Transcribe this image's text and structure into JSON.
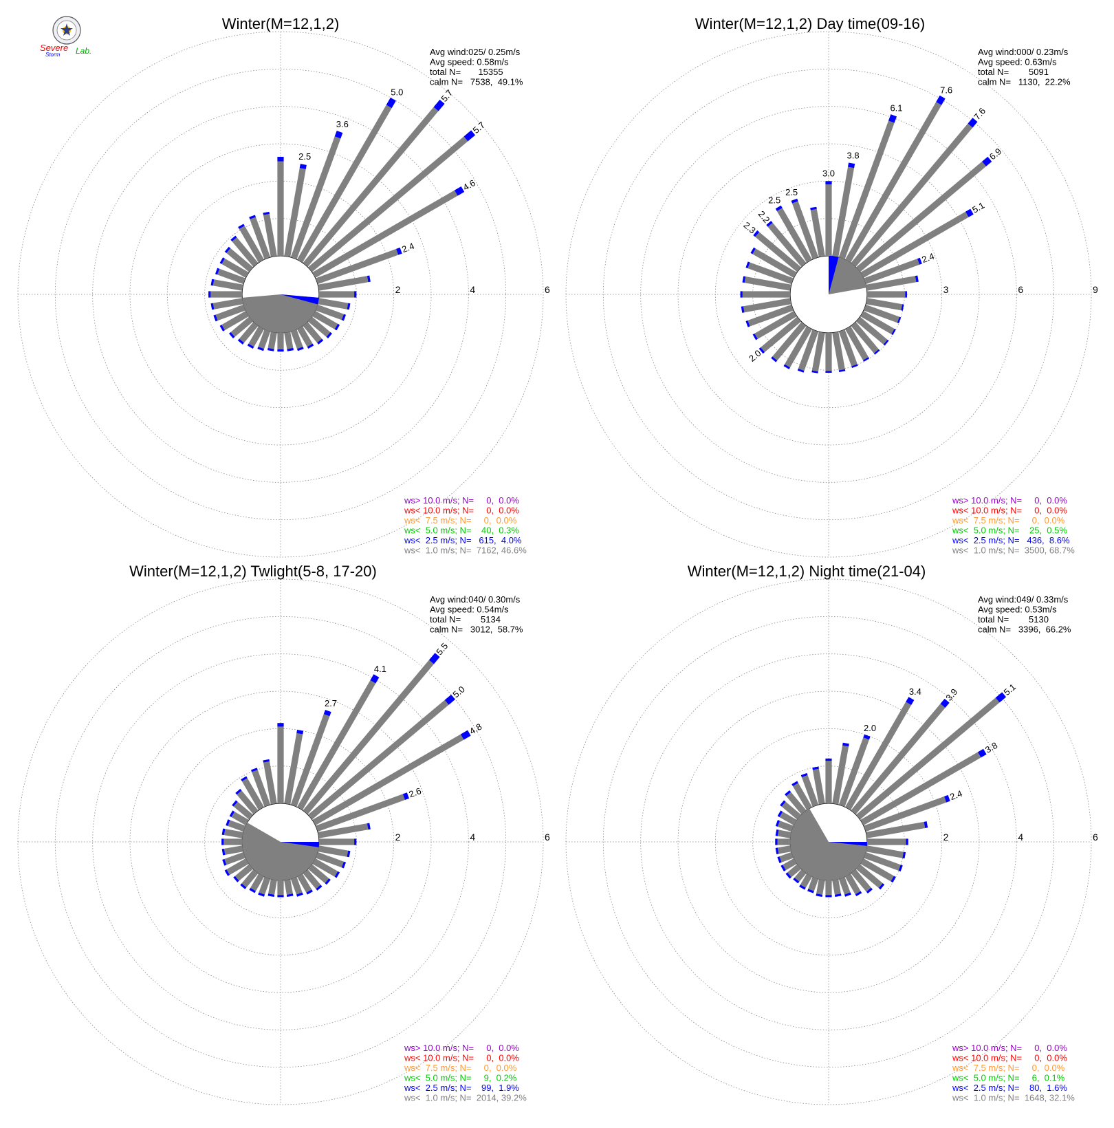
{
  "colors": {
    "gray": "#808080",
    "blue": "#0000ff",
    "green": "#00cc00",
    "orange": "#ff9933",
    "red": "#ff0000",
    "purple": "#9900cc",
    "grid": "#888888"
  },
  "logo": {
    "icon": "severe-storm-lab-logo",
    "text_severe": "Severe",
    "text_storm": "Storm",
    "text_lab": "Lab."
  },
  "chart_data": [
    {
      "type": "wind-rose",
      "title": "Winter(M=12,1,2)",
      "ring_max": 6,
      "ring_labels": [
        "2",
        "4",
        "6"
      ],
      "stats": [
        "Avg wind:025/ 0.25m/s",
        "Avg speed: 0.58m/s",
        "total N=       15355",
        "calm N=   7538,  49.1%"
      ],
      "calm_pie_percent": 49.1,
      "calm_start_deg": 95,
      "calm_end_deg": 265,
      "calm_blue_deg": 10,
      "directions": [
        {
          "dir": 0,
          "value": 2.65,
          "label": ""
        },
        {
          "dir": 10,
          "value": 2.5,
          "label": "2.5"
        },
        {
          "dir": 20,
          "value": 3.6,
          "label": "3.6"
        },
        {
          "dir": 30,
          "value": 5.0,
          "label": "5.0"
        },
        {
          "dir": 40,
          "value": 5.7,
          "label": "5.7"
        },
        {
          "dir": 50,
          "value": 5.7,
          "label": "5.7"
        },
        {
          "dir": 60,
          "value": 4.6,
          "label": "4.6"
        },
        {
          "dir": 70,
          "value": 2.4,
          "label": "2.4"
        },
        {
          "dir": 80,
          "value": 1.4,
          "label": ""
        },
        {
          "dir": 90,
          "value": 1.0,
          "label": ""
        },
        {
          "dir": 100,
          "value": 0.85,
          "label": ""
        },
        {
          "dir": 110,
          "value": 0.8,
          "label": ""
        },
        {
          "dir": 120,
          "value": 0.75,
          "label": ""
        },
        {
          "dir": 130,
          "value": 0.7,
          "label": ""
        },
        {
          "dir": 140,
          "value": 0.65,
          "label": ""
        },
        {
          "dir": 150,
          "value": 0.6,
          "label": ""
        },
        {
          "dir": 160,
          "value": 0.55,
          "label": ""
        },
        {
          "dir": 170,
          "value": 0.5,
          "label": ""
        },
        {
          "dir": 180,
          "value": 0.5,
          "label": ""
        },
        {
          "dir": 190,
          "value": 0.5,
          "label": ""
        },
        {
          "dir": 200,
          "value": 0.55,
          "label": ""
        },
        {
          "dir": 210,
          "value": 0.6,
          "label": ""
        },
        {
          "dir": 220,
          "value": 0.65,
          "label": ""
        },
        {
          "dir": 230,
          "value": 0.7,
          "label": ""
        },
        {
          "dir": 240,
          "value": 0.8,
          "label": ""
        },
        {
          "dir": 250,
          "value": 0.85,
          "label": ""
        },
        {
          "dir": 260,
          "value": 0.85,
          "label": ""
        },
        {
          "dir": 270,
          "value": 0.9,
          "label": ""
        },
        {
          "dir": 280,
          "value": 0.85,
          "label": ""
        },
        {
          "dir": 290,
          "value": 0.8,
          "label": ""
        },
        {
          "dir": 300,
          "value": 0.8,
          "label": ""
        },
        {
          "dir": 310,
          "value": 0.85,
          "label": ""
        },
        {
          "dir": 320,
          "value": 0.95,
          "label": ""
        },
        {
          "dir": 330,
          "value": 1.1,
          "label": ""
        },
        {
          "dir": 340,
          "value": 1.2,
          "label": ""
        },
        {
          "dir": 350,
          "value": 1.2,
          "label": ""
        }
      ],
      "legend": [
        {
          "text": "ws> 10.0 m/s; N=     0,  0.0%",
          "color": "#9900cc"
        },
        {
          "text": "ws< 10.0 m/s; N=     0,  0.0%",
          "color": "#ff0000"
        },
        {
          "text": "ws<  7.5 m/s; N=     0,  0.0%",
          "color": "#ff9933"
        },
        {
          "text": "ws<  5.0 m/s; N=    40,  0.3%",
          "color": "#00cc00"
        },
        {
          "text": "ws<  2.5 m/s; N=   615,  4.0%",
          "color": "#0000ff"
        },
        {
          "text": "ws<  1.0 m/s; N=  7162, 46.6%",
          "color": "#808080"
        }
      ]
    },
    {
      "type": "wind-rose",
      "title": "Winter(M=12,1,2) Day time(09-16)",
      "ring_max": 9,
      "ring_labels": [
        "3",
        "6",
        "9"
      ],
      "stats": [
        "Avg wind:000/ 0.23m/s",
        "Avg speed: 0.63m/s",
        "total N=        5091",
        "calm N=   1130,  22.2%"
      ],
      "calm_pie_percent": 22.2,
      "calm_start_deg": 0,
      "calm_end_deg": 80,
      "calm_blue_deg": 15,
      "directions": [
        {
          "dir": 0,
          "value": 3.0,
          "label": "3.0"
        },
        {
          "dir": 10,
          "value": 3.8,
          "label": "3.8"
        },
        {
          "dir": 20,
          "value": 6.1,
          "label": "6.1"
        },
        {
          "dir": 30,
          "value": 7.6,
          "label": "7.6"
        },
        {
          "dir": 40,
          "value": 7.6,
          "label": "7.6"
        },
        {
          "dir": 50,
          "value": 6.9,
          "label": "6.9"
        },
        {
          "dir": 60,
          "value": 5.1,
          "label": "5.1"
        },
        {
          "dir": 70,
          "value": 2.4,
          "label": "2.4"
        },
        {
          "dir": 80,
          "value": 2.1,
          "label": ""
        },
        {
          "dir": 90,
          "value": 1.6,
          "label": ""
        },
        {
          "dir": 100,
          "value": 1.5,
          "label": ""
        },
        {
          "dir": 110,
          "value": 1.5,
          "label": ""
        },
        {
          "dir": 120,
          "value": 1.5,
          "label": ""
        },
        {
          "dir": 130,
          "value": 1.5,
          "label": ""
        },
        {
          "dir": 140,
          "value": 1.5,
          "label": ""
        },
        {
          "dir": 150,
          "value": 1.5,
          "label": ""
        },
        {
          "dir": 160,
          "value": 1.55,
          "label": ""
        },
        {
          "dir": 170,
          "value": 1.6,
          "label": ""
        },
        {
          "dir": 180,
          "value": 1.6,
          "label": ""
        },
        {
          "dir": 190,
          "value": 1.65,
          "label": ""
        },
        {
          "dir": 200,
          "value": 1.75,
          "label": ""
        },
        {
          "dir": 210,
          "value": 1.85,
          "label": ""
        },
        {
          "dir": 220,
          "value": 1.9,
          "label": ""
        },
        {
          "dir": 230,
          "value": 2.0,
          "label": "2.0"
        },
        {
          "dir": 240,
          "value": 1.9,
          "label": ""
        },
        {
          "dir": 250,
          "value": 1.95,
          "label": ""
        },
        {
          "dir": 260,
          "value": 2.0,
          "label": ""
        },
        {
          "dir": 270,
          "value": 2.0,
          "label": ""
        },
        {
          "dir": 280,
          "value": 1.95,
          "label": ""
        },
        {
          "dir": 290,
          "value": 1.95,
          "label": ""
        },
        {
          "dir": 300,
          "value": 2.0,
          "label": ""
        },
        {
          "dir": 310,
          "value": 2.3,
          "label": "2.3"
        },
        {
          "dir": 320,
          "value": 2.2,
          "label": "2.2"
        },
        {
          "dir": 330,
          "value": 2.5,
          "label": "2.5"
        },
        {
          "dir": 340,
          "value": 2.5,
          "label": "2.5"
        },
        {
          "dir": 350,
          "value": 2.0,
          "label": ""
        }
      ],
      "legend": [
        {
          "text": "ws> 10.0 m/s; N=     0,  0.0%",
          "color": "#9900cc"
        },
        {
          "text": "ws< 10.0 m/s; N=     0,  0.0%",
          "color": "#ff0000"
        },
        {
          "text": "ws<  7.5 m/s; N=     0,  0.0%",
          "color": "#ff9933"
        },
        {
          "text": "ws<  5.0 m/s; N=    25,  0.5%",
          "color": "#00cc00"
        },
        {
          "text": "ws<  2.5 m/s; N=   436,  8.6%",
          "color": "#0000ff"
        },
        {
          "text": "ws<  1.0 m/s; N=  3500, 68.7%",
          "color": "#808080"
        }
      ]
    },
    {
      "type": "wind-rose",
      "title": "Winter(M=12,1,2) Twlight(5-8, 17-20)",
      "ring_max": 6,
      "ring_labels": [
        "2",
        "4",
        "6"
      ],
      "stats": [
        "Avg wind:040/ 0.30m/s",
        "Avg speed: 0.54m/s",
        "total N=        5134",
        "calm N=   3012,  58.7%"
      ],
      "calm_pie_percent": 58.7,
      "calm_start_deg": 90,
      "calm_end_deg": 300,
      "calm_blue_deg": 8,
      "directions": [
        {
          "dir": 0,
          "value": 2.15,
          "label": ""
        },
        {
          "dir": 10,
          "value": 2.0,
          "label": ""
        },
        {
          "dir": 20,
          "value": 2.7,
          "label": "2.7"
        },
        {
          "dir": 30,
          "value": 4.1,
          "label": "4.1"
        },
        {
          "dir": 40,
          "value": 5.5,
          "label": "5.5"
        },
        {
          "dir": 50,
          "value": 5.0,
          "label": "5.0"
        },
        {
          "dir": 60,
          "value": 4.8,
          "label": "4.8"
        },
        {
          "dir": 70,
          "value": 2.6,
          "label": "2.6"
        },
        {
          "dir": 80,
          "value": 1.4,
          "label": ""
        },
        {
          "dir": 90,
          "value": 1.0,
          "label": ""
        },
        {
          "dir": 100,
          "value": 0.85,
          "label": ""
        },
        {
          "dir": 110,
          "value": 0.8,
          "label": ""
        },
        {
          "dir": 120,
          "value": 0.75,
          "label": ""
        },
        {
          "dir": 130,
          "value": 0.65,
          "label": ""
        },
        {
          "dir": 140,
          "value": 0.6,
          "label": ""
        },
        {
          "dir": 150,
          "value": 0.55,
          "label": ""
        },
        {
          "dir": 160,
          "value": 0.5,
          "label": ""
        },
        {
          "dir": 170,
          "value": 0.45,
          "label": ""
        },
        {
          "dir": 180,
          "value": 0.45,
          "label": ""
        },
        {
          "dir": 190,
          "value": 0.45,
          "label": ""
        },
        {
          "dir": 200,
          "value": 0.5,
          "label": ""
        },
        {
          "dir": 210,
          "value": 0.5,
          "label": ""
        },
        {
          "dir": 220,
          "value": 0.55,
          "label": ""
        },
        {
          "dir": 230,
          "value": 0.55,
          "label": ""
        },
        {
          "dir": 240,
          "value": 0.65,
          "label": ""
        },
        {
          "dir": 250,
          "value": 0.6,
          "label": ""
        },
        {
          "dir": 260,
          "value": 0.55,
          "label": ""
        },
        {
          "dir": 270,
          "value": 0.55,
          "label": ""
        },
        {
          "dir": 280,
          "value": 0.55,
          "label": ""
        },
        {
          "dir": 290,
          "value": 0.5,
          "label": ""
        },
        {
          "dir": 300,
          "value": 0.5,
          "label": ""
        },
        {
          "dir": 310,
          "value": 0.6,
          "label": ""
        },
        {
          "dir": 320,
          "value": 0.75,
          "label": ""
        },
        {
          "dir": 330,
          "value": 0.95,
          "label": ""
        },
        {
          "dir": 340,
          "value": 1.05,
          "label": ""
        },
        {
          "dir": 350,
          "value": 1.2,
          "label": ""
        }
      ],
      "legend": [
        {
          "text": "ws> 10.0 m/s; N=     0,  0.0%",
          "color": "#9900cc"
        },
        {
          "text": "ws< 10.0 m/s; N=     0,  0.0%",
          "color": "#ff0000"
        },
        {
          "text": "ws<  7.5 m/s; N=     0,  0.0%",
          "color": "#ff9933"
        },
        {
          "text": "ws<  5.0 m/s; N=     9,  0.2%",
          "color": "#00cc00"
        },
        {
          "text": "ws<  2.5 m/s; N=    99,  1.9%",
          "color": "#0000ff"
        },
        {
          "text": "ws<  1.0 m/s; N=  2014, 39.2%",
          "color": "#808080"
        }
      ]
    },
    {
      "type": "wind-rose",
      "title": "Winter(M=12,1,2) Night time(21-04)",
      "ring_max": 6,
      "ring_labels": [
        "2",
        "4",
        "6"
      ],
      "stats": [
        "Avg wind:049/ 0.33m/s",
        "Avg speed: 0.53m/s",
        "total N=        5130",
        "calm N=   3396,  66.2%"
      ],
      "calm_pie_percent": 66.2,
      "calm_start_deg": 90,
      "calm_end_deg": 330,
      "calm_blue_deg": 6,
      "directions": [
        {
          "dir": 0,
          "value": 1.2,
          "label": ""
        },
        {
          "dir": 10,
          "value": 1.65,
          "label": ""
        },
        {
          "dir": 20,
          "value": 2.0,
          "label": "2.0"
        },
        {
          "dir": 30,
          "value": 3.4,
          "label": "3.4"
        },
        {
          "dir": 40,
          "value": 3.9,
          "label": "3.9"
        },
        {
          "dir": 50,
          "value": 5.1,
          "label": "5.1"
        },
        {
          "dir": 60,
          "value": 3.8,
          "label": "3.8"
        },
        {
          "dir": 70,
          "value": 2.4,
          "label": "2.4"
        },
        {
          "dir": 80,
          "value": 1.65,
          "label": ""
        },
        {
          "dir": 90,
          "value": 1.1,
          "label": ""
        },
        {
          "dir": 100,
          "value": 1.05,
          "label": ""
        },
        {
          "dir": 110,
          "value": 1.05,
          "label": ""
        },
        {
          "dir": 120,
          "value": 1.0,
          "label": ""
        },
        {
          "dir": 130,
          "value": 0.85,
          "label": ""
        },
        {
          "dir": 140,
          "value": 0.7,
          "label": ""
        },
        {
          "dir": 150,
          "value": 0.6,
          "label": ""
        },
        {
          "dir": 160,
          "value": 0.5,
          "label": ""
        },
        {
          "dir": 170,
          "value": 0.45,
          "label": ""
        },
        {
          "dir": 180,
          "value": 0.45,
          "label": ""
        },
        {
          "dir": 190,
          "value": 0.45,
          "label": ""
        },
        {
          "dir": 200,
          "value": 0.4,
          "label": ""
        },
        {
          "dir": 210,
          "value": 0.4,
          "label": ""
        },
        {
          "dir": 220,
          "value": 0.35,
          "label": ""
        },
        {
          "dir": 230,
          "value": 0.4,
          "label": ""
        },
        {
          "dir": 240,
          "value": 0.4,
          "label": ""
        },
        {
          "dir": 250,
          "value": 0.4,
          "label": ""
        },
        {
          "dir": 260,
          "value": 0.4,
          "label": ""
        },
        {
          "dir": 270,
          "value": 0.4,
          "label": ""
        },
        {
          "dir": 280,
          "value": 0.4,
          "label": ""
        },
        {
          "dir": 290,
          "value": 0.45,
          "label": ""
        },
        {
          "dir": 300,
          "value": 0.5,
          "label": ""
        },
        {
          "dir": 310,
          "value": 0.6,
          "label": ""
        },
        {
          "dir": 320,
          "value": 0.7,
          "label": ""
        },
        {
          "dir": 330,
          "value": 0.8,
          "label": ""
        },
        {
          "dir": 340,
          "value": 0.9,
          "label": ""
        },
        {
          "dir": 350,
          "value": 1.0,
          "label": ""
        }
      ],
      "legend": [
        {
          "text": "ws> 10.0 m/s; N=     0,  0.0%",
          "color": "#9900cc"
        },
        {
          "text": "ws< 10.0 m/s; N=     0,  0.0%",
          "color": "#ff0000"
        },
        {
          "text": "ws<  7.5 m/s; N=     0,  0.0%",
          "color": "#ff9933"
        },
        {
          "text": "ws<  5.0 m/s; N=     6,  0.1%",
          "color": "#00cc00"
        },
        {
          "text": "ws<  2.5 m/s; N=    80,  1.6%",
          "color": "#0000ff"
        },
        {
          "text": "ws<  1.0 m/s; N=  1648, 32.1%",
          "color": "#808080"
        }
      ]
    }
  ]
}
